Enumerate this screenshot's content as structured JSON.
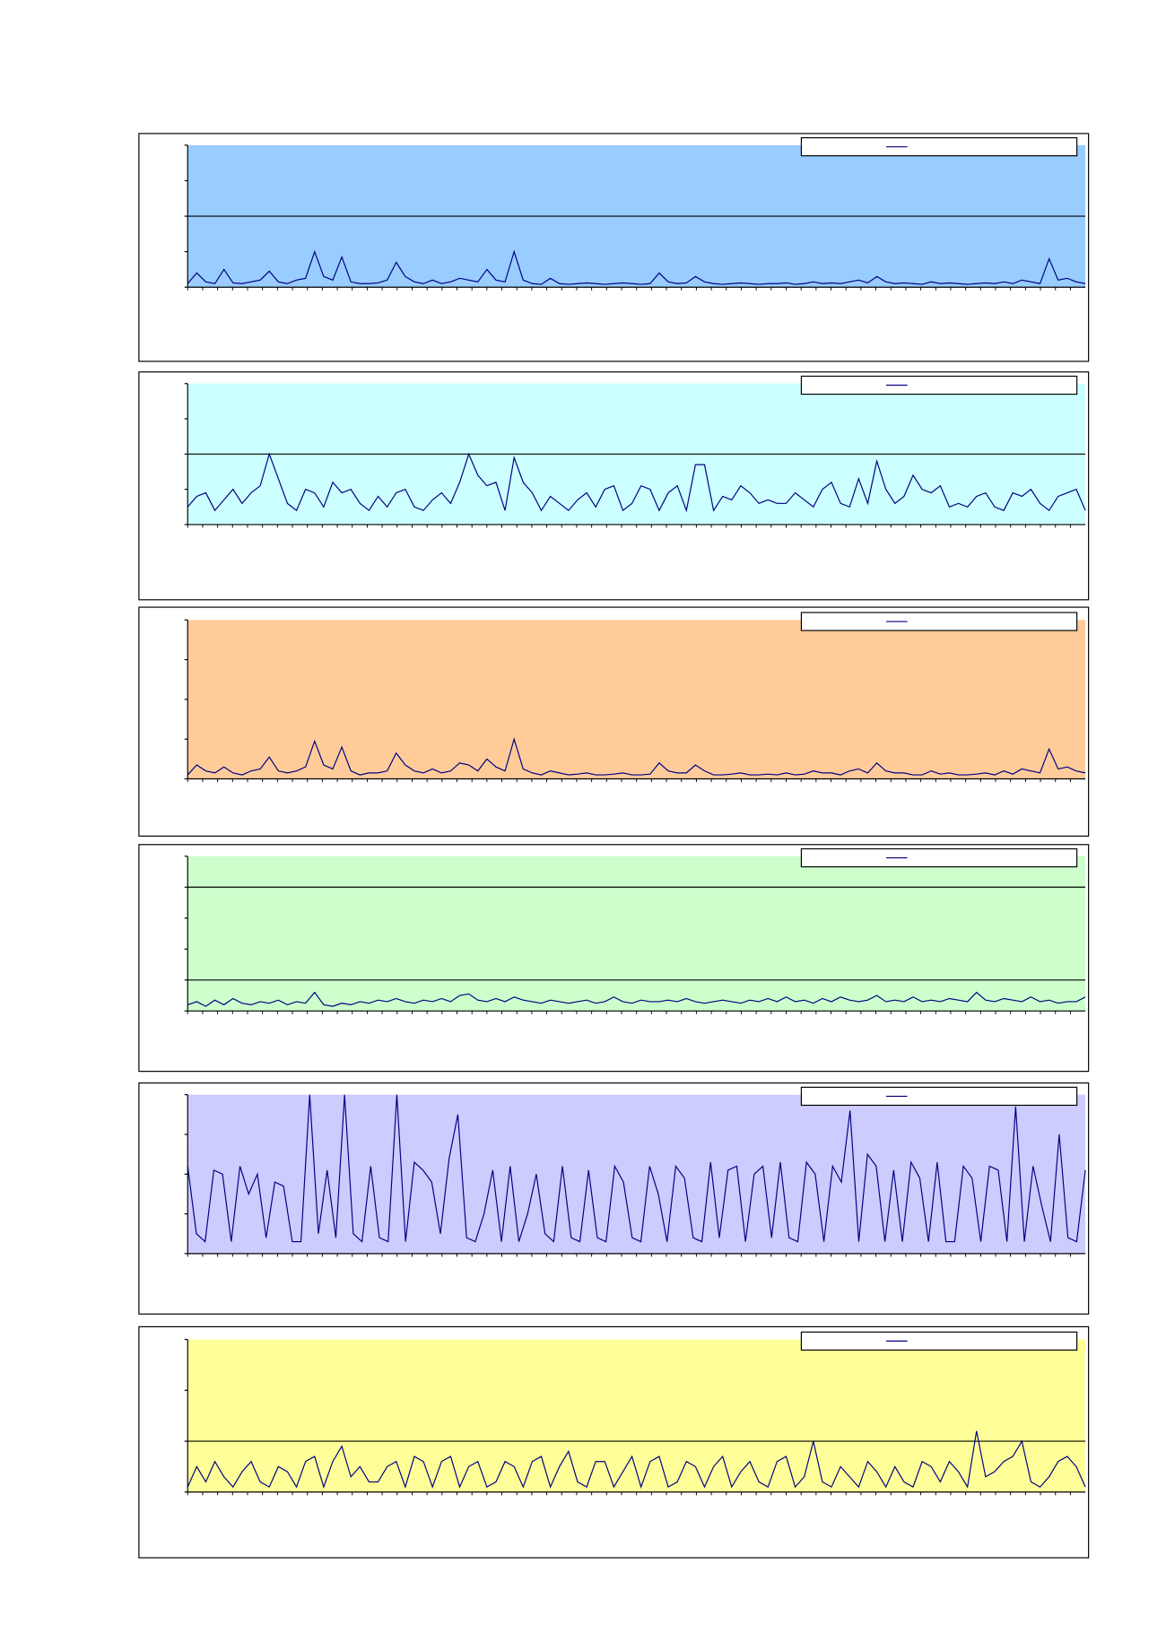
{
  "chart_data": [
    {
      "type": "line",
      "ylim": [
        0,
        4
      ],
      "yticks": [
        0,
        1,
        2,
        3,
        4
      ],
      "grid": [
        2
      ],
      "plot_color": "#99ccff",
      "legend": "top-right",
      "series": [
        {
          "color": "#000080",
          "values": [
            0.1,
            0.4,
            0.15,
            0.1,
            0.5,
            0.12,
            0.1,
            0.15,
            0.2,
            0.45,
            0.15,
            0.1,
            0.2,
            0.25,
            1.0,
            0.3,
            0.2,
            0.85,
            0.15,
            0.1,
            0.1,
            0.12,
            0.2,
            0.7,
            0.3,
            0.15,
            0.1,
            0.2,
            0.1,
            0.15,
            0.25,
            0.2,
            0.15,
            0.5,
            0.2,
            0.15,
            1.0,
            0.2,
            0.1,
            0.08,
            0.25,
            0.1,
            0.08,
            0.1,
            0.12,
            0.1,
            0.08,
            0.1,
            0.12,
            0.1,
            0.08,
            0.1,
            0.4,
            0.15,
            0.1,
            0.12,
            0.3,
            0.15,
            0.1,
            0.08,
            0.1,
            0.12,
            0.1,
            0.08,
            0.1,
            0.1,
            0.12,
            0.08,
            0.1,
            0.15,
            0.1,
            0.12,
            0.1,
            0.15,
            0.2,
            0.12,
            0.3,
            0.15,
            0.1,
            0.12,
            0.1,
            0.08,
            0.15,
            0.1,
            0.12,
            0.1,
            0.08,
            0.1,
            0.12,
            0.1,
            0.15,
            0.1,
            0.2,
            0.15,
            0.1,
            0.8,
            0.2,
            0.25,
            0.15,
            0.1
          ]
        }
      ]
    },
    {
      "type": "line",
      "ylim": [
        0,
        4
      ],
      "yticks": [
        0,
        1,
        2,
        3,
        4
      ],
      "grid": [
        2
      ],
      "plot_color": "#ccffff",
      "legend": "top-right",
      "series": [
        {
          "color": "#000080",
          "values": [
            0.5,
            0.8,
            0.9,
            0.4,
            0.7,
            1.0,
            0.6,
            0.9,
            1.1,
            2.0,
            1.3,
            0.6,
            0.4,
            1.0,
            0.9,
            0.5,
            1.2,
            0.9,
            1.0,
            0.6,
            0.4,
            0.8,
            0.5,
            0.9,
            1.0,
            0.5,
            0.4,
            0.7,
            0.9,
            0.6,
            1.2,
            2.0,
            1.4,
            1.1,
            1.2,
            0.4,
            1.9,
            1.2,
            0.9,
            0.4,
            0.8,
            0.6,
            0.4,
            0.7,
            0.9,
            0.5,
            1.0,
            1.1,
            0.4,
            0.6,
            1.1,
            1.0,
            0.4,
            0.9,
            1.1,
            0.4,
            1.7,
            1.7,
            0.4,
            0.8,
            0.7,
            1.1,
            0.9,
            0.6,
            0.7,
            0.6,
            0.6,
            0.9,
            0.7,
            0.5,
            1.0,
            1.2,
            0.6,
            0.5,
            1.3,
            0.6,
            1.8,
            1.0,
            0.6,
            0.8,
            1.4,
            1.0,
            0.9,
            1.1,
            0.5,
            0.6,
            0.5,
            0.8,
            0.9,
            0.5,
            0.4,
            0.9,
            0.8,
            1.0,
            0.6,
            0.4,
            0.8,
            0.9,
            1.0,
            0.4
          ]
        }
      ]
    },
    {
      "type": "line",
      "ylim": [
        0,
        4
      ],
      "yticks": [
        0,
        1,
        2,
        3,
        4
      ],
      "grid": [],
      "plot_color": "#ffcc99",
      "legend": "top-right",
      "series": [
        {
          "color": "#000080",
          "values": [
            0.1,
            0.35,
            0.2,
            0.15,
            0.3,
            0.15,
            0.1,
            0.2,
            0.25,
            0.55,
            0.2,
            0.15,
            0.2,
            0.3,
            0.95,
            0.35,
            0.25,
            0.8,
            0.2,
            0.1,
            0.15,
            0.15,
            0.2,
            0.65,
            0.35,
            0.2,
            0.15,
            0.25,
            0.15,
            0.2,
            0.4,
            0.35,
            0.2,
            0.5,
            0.3,
            0.2,
            1.0,
            0.25,
            0.15,
            0.1,
            0.2,
            0.15,
            0.1,
            0.12,
            0.15,
            0.1,
            0.1,
            0.12,
            0.15,
            0.1,
            0.1,
            0.12,
            0.4,
            0.2,
            0.15,
            0.15,
            0.35,
            0.2,
            0.1,
            0.1,
            0.12,
            0.15,
            0.1,
            0.1,
            0.12,
            0.1,
            0.15,
            0.1,
            0.12,
            0.2,
            0.15,
            0.15,
            0.1,
            0.2,
            0.25,
            0.15,
            0.4,
            0.2,
            0.15,
            0.15,
            0.1,
            0.1,
            0.2,
            0.12,
            0.15,
            0.1,
            0.1,
            0.12,
            0.15,
            0.1,
            0.2,
            0.12,
            0.25,
            0.2,
            0.15,
            0.75,
            0.25,
            0.3,
            0.2,
            0.15
          ]
        }
      ]
    },
    {
      "type": "line",
      "ylim": [
        0,
        5
      ],
      "yticks": [
        0,
        1,
        2,
        3,
        4,
        5
      ],
      "grid": [
        1,
        4
      ],
      "plot_color": "#ccffcc",
      "legend": "top-right",
      "series": [
        {
          "color": "#000080",
          "values": [
            0.2,
            0.3,
            0.15,
            0.35,
            0.2,
            0.4,
            0.25,
            0.2,
            0.3,
            0.25,
            0.35,
            0.2,
            0.3,
            0.25,
            0.6,
            0.2,
            0.15,
            0.25,
            0.2,
            0.3,
            0.25,
            0.35,
            0.3,
            0.4,
            0.3,
            0.25,
            0.35,
            0.3,
            0.4,
            0.3,
            0.5,
            0.55,
            0.35,
            0.3,
            0.4,
            0.3,
            0.45,
            0.35,
            0.3,
            0.25,
            0.35,
            0.3,
            0.25,
            0.3,
            0.35,
            0.25,
            0.3,
            0.45,
            0.3,
            0.25,
            0.35,
            0.3,
            0.3,
            0.35,
            0.3,
            0.4,
            0.3,
            0.25,
            0.3,
            0.35,
            0.3,
            0.25,
            0.35,
            0.3,
            0.4,
            0.3,
            0.45,
            0.3,
            0.35,
            0.25,
            0.4,
            0.3,
            0.45,
            0.35,
            0.3,
            0.35,
            0.5,
            0.3,
            0.35,
            0.3,
            0.45,
            0.3,
            0.35,
            0.3,
            0.4,
            0.35,
            0.3,
            0.6,
            0.35,
            0.3,
            0.4,
            0.35,
            0.3,
            0.45,
            0.3,
            0.35,
            0.25,
            0.3,
            0.3,
            0.45
          ]
        }
      ]
    },
    {
      "type": "line",
      "ylim": [
        0,
        4
      ],
      "yticks": [
        0,
        1,
        2,
        3,
        4
      ],
      "grid": [],
      "plot_color": "#ccccff",
      "legend": "top-right",
      "series": [
        {
          "color": "#000080",
          "values": [
            2.2,
            0.5,
            0.3,
            2.1,
            2.0,
            0.3,
            2.2,
            1.5,
            2.0,
            0.4,
            1.8,
            1.7,
            0.3,
            0.3,
            4.0,
            0.5,
            2.1,
            0.4,
            4.0,
            0.5,
            0.3,
            2.2,
            0.4,
            0.3,
            4.0,
            0.3,
            2.3,
            2.1,
            1.8,
            0.5,
            2.4,
            3.5,
            0.4,
            0.3,
            1.0,
            2.1,
            0.3,
            2.2,
            0.3,
            1.0,
            2.0,
            0.5,
            0.3,
            2.2,
            0.4,
            0.3,
            2.1,
            0.4,
            0.3,
            2.2,
            1.8,
            0.4,
            0.3,
            2.2,
            1.5,
            0.3,
            2.2,
            1.9,
            0.4,
            0.3,
            2.3,
            0.4,
            2.1,
            2.2,
            0.3,
            2.0,
            2.2,
            0.4,
            2.3,
            0.4,
            0.3,
            2.3,
            2.0,
            0.3,
            2.2,
            1.8,
            3.6,
            0.3,
            2.5,
            2.2,
            0.3,
            2.1,
            0.3,
            2.3,
            1.9,
            0.3,
            2.3,
            0.3,
            0.3,
            2.2,
            1.9,
            0.3,
            2.2,
            2.1,
            0.3,
            3.7,
            0.3,
            2.2,
            1.2,
            0.3,
            3.0,
            0.4,
            0.3,
            2.1
          ]
        }
      ]
    },
    {
      "type": "line",
      "ylim": [
        0,
        3
      ],
      "yticks": [
        0,
        1,
        2,
        3
      ],
      "grid": [
        1
      ],
      "plot_color": "#ffff99",
      "legend": "top-right",
      "series": [
        {
          "color": "#000080",
          "values": [
            0.1,
            0.5,
            0.2,
            0.6,
            0.3,
            0.1,
            0.4,
            0.6,
            0.2,
            0.1,
            0.5,
            0.4,
            0.1,
            0.6,
            0.7,
            0.1,
            0.6,
            0.9,
            0.3,
            0.5,
            0.2,
            0.2,
            0.5,
            0.6,
            0.1,
            0.7,
            0.6,
            0.1,
            0.6,
            0.7,
            0.1,
            0.5,
            0.6,
            0.1,
            0.2,
            0.6,
            0.5,
            0.1,
            0.6,
            0.7,
            0.1,
            0.5,
            0.8,
            0.2,
            0.1,
            0.6,
            0.6,
            0.1,
            0.4,
            0.7,
            0.1,
            0.6,
            0.7,
            0.1,
            0.2,
            0.6,
            0.5,
            0.1,
            0.5,
            0.7,
            0.1,
            0.4,
            0.6,
            0.2,
            0.1,
            0.6,
            0.7,
            0.1,
            0.3,
            1.0,
            0.2,
            0.1,
            0.5,
            0.3,
            0.1,
            0.6,
            0.4,
            0.1,
            0.5,
            0.2,
            0.1,
            0.6,
            0.5,
            0.2,
            0.6,
            0.4,
            0.1,
            1.2,
            0.3,
            0.4,
            0.6,
            0.7,
            1.0,
            0.2,
            0.1,
            0.3,
            0.6,
            0.7,
            0.5,
            0.1
          ]
        }
      ]
    }
  ]
}
